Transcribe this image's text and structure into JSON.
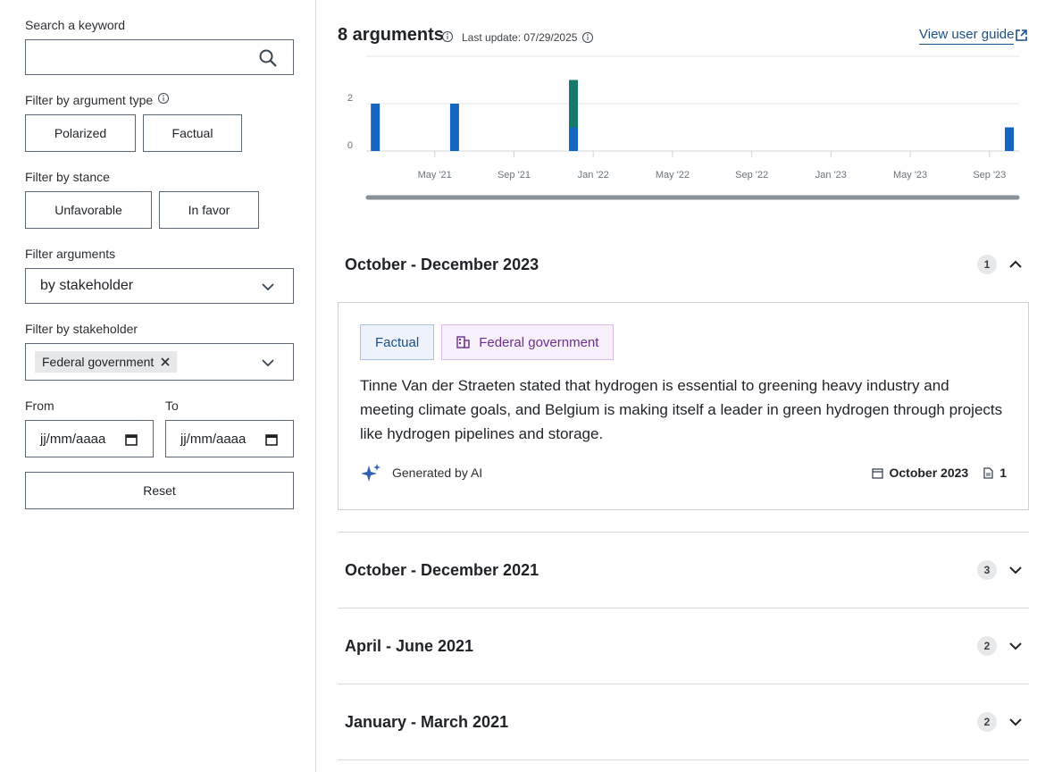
{
  "sidebar": {
    "search": {
      "label": "Search a keyword"
    },
    "argument_type": {
      "label": "Filter by argument type",
      "options": [
        "Polarized",
        "Factual"
      ]
    },
    "stance": {
      "label": "Filter by stance",
      "options": [
        "Unfavorable",
        "In favor"
      ]
    },
    "filter_arguments": {
      "label": "Filter arguments",
      "value": "by stakeholder"
    },
    "stakeholder": {
      "label": "Filter by stakeholder",
      "chip": "Federal government"
    },
    "from": {
      "label": "From",
      "placeholder": "jj/mm/aaaa"
    },
    "to": {
      "label": "To",
      "placeholder": "jj/mm/aaaa"
    },
    "reset": "Reset"
  },
  "header": {
    "count": "8 arguments",
    "last_update": "Last update: 07/29/2025",
    "guide": "View user guide"
  },
  "chart_data": {
    "type": "bar",
    "stacked": true,
    "x": [
      "2021-02",
      "2021-06",
      "2021-12",
      "2023-10"
    ],
    "series": [
      {
        "color": "#1565c0",
        "values": [
          2,
          2,
          1,
          1
        ]
      },
      {
        "color": "#17786c",
        "values": [
          0,
          0,
          2,
          0
        ]
      }
    ],
    "xlim": [
      "2021-01",
      "2023-10"
    ],
    "xticks": [
      {
        "value": "2021-05",
        "label": "May '21"
      },
      {
        "value": "2021-09",
        "label": "Sep '21"
      },
      {
        "value": "2022-01",
        "label": "Jan '22"
      },
      {
        "value": "2022-05",
        "label": "May '22"
      },
      {
        "value": "2022-09",
        "label": "Sep '22"
      },
      {
        "value": "2023-01",
        "label": "Jan '23"
      },
      {
        "value": "2023-05",
        "label": "May '23"
      },
      {
        "value": "2023-09",
        "label": "Sep '23"
      }
    ],
    "ylim": [
      0,
      4
    ],
    "yticks": [
      0,
      2
    ],
    "grid": true
  },
  "sections": [
    {
      "title": "October - December 2023",
      "count": 1,
      "expanded": true,
      "argument": {
        "tags": [
          "Factual",
          "Federal government"
        ],
        "text": "Tinne Van der Straeten stated that hydrogen is essential to greening heavy industry and meeting climate goals, and Belgium is making itself a leader in green hydrogen through projects like hydrogen pipelines and storage.",
        "ai": "Generated by AI",
        "date": "October 2023",
        "sources": 1
      }
    },
    {
      "title": "October - December 2021",
      "count": 3,
      "expanded": false
    },
    {
      "title": "April - June 2021",
      "count": 2,
      "expanded": false
    },
    {
      "title": "January - March 2021",
      "count": 2,
      "expanded": false
    }
  ]
}
